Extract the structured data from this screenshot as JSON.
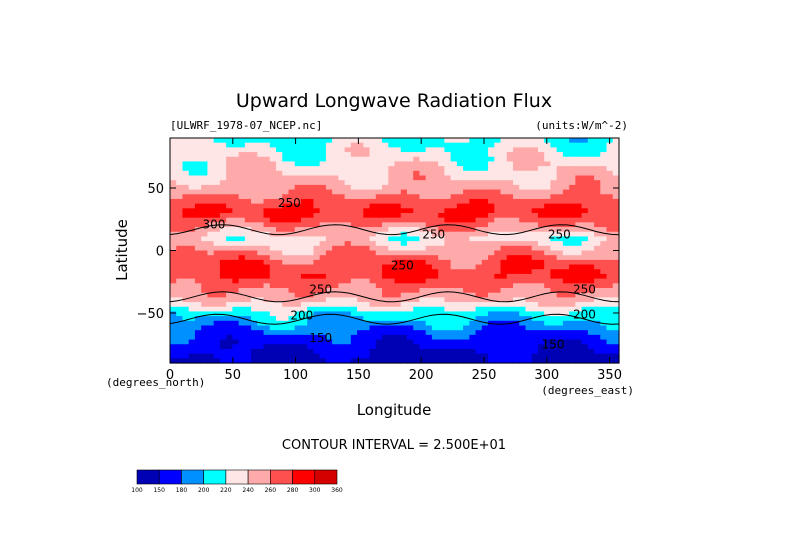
{
  "chart_data": {
    "type": "heatmap",
    "title": "Upward Longwave Radiation Flux",
    "subtitle_left": "[ULWRF_1978-07_NCEP.nc]",
    "subtitle_right": "(units:W/m^-2)",
    "xlabel": "Longitude",
    "ylabel": "Latitude",
    "x_unit_label": "(degrees_east)",
    "y_unit_label": "(degrees_north)",
    "xlim": [
      0,
      357.5
    ],
    "ylim": [
      -90,
      90
    ],
    "x_ticks": [
      0,
      50,
      100,
      150,
      200,
      250,
      300,
      350
    ],
    "y_ticks": [
      -50,
      0,
      50
    ],
    "x_tick_labels": [
      "0",
      "50",
      "100",
      "150",
      "200",
      "250",
      "300",
      "350"
    ],
    "y_tick_labels": [
      "−50",
      "0",
      "50"
    ],
    "contour_interval_text": "CONTOUR INTERVAL = 2.500E+01",
    "contour_labels": [
      {
        "text": "250",
        "x": 95,
        "y": 38
      },
      {
        "text": "300",
        "x": 35,
        "y": 21
      },
      {
        "text": "250",
        "x": 210,
        "y": 13
      },
      {
        "text": "250",
        "x": 310,
        "y": 13
      },
      {
        "text": "250",
        "x": 185,
        "y": -12
      },
      {
        "text": "250",
        "x": 120,
        "y": -31
      },
      {
        "text": "250",
        "x": 330,
        "y": -31
      },
      {
        "text": "200",
        "x": 105,
        "y": -52
      },
      {
        "text": "200",
        "x": 330,
        "y": -51
      },
      {
        "text": "150",
        "x": 120,
        "y": -70
      },
      {
        "text": "150",
        "x": 305,
        "y": -75
      }
    ],
    "colorbar": {
      "levels": [
        "100",
        "150",
        "180",
        "200",
        "220",
        "240",
        "260",
        "280",
        "300",
        "360"
      ],
      "colors": [
        "#0000b4",
        "#0000ff",
        "#0090ff",
        "#00ffff",
        "#ffe6e6",
        "#ffaaaa",
        "#ff5050",
        "#ff0000",
        "#d40000"
      ]
    },
    "zonal_profile": [
      {
        "lat": 90,
        "value": 215
      },
      {
        "lat": 80,
        "value": 225
      },
      {
        "lat": 70,
        "value": 232
      },
      {
        "lat": 60,
        "value": 240
      },
      {
        "lat": 50,
        "value": 250
      },
      {
        "lat": 40,
        "value": 270
      },
      {
        "lat": 30,
        "value": 285
      },
      {
        "lat": 20,
        "value": 260
      },
      {
        "lat": 10,
        "value": 230
      },
      {
        "lat": 0,
        "value": 250
      },
      {
        "lat": -10,
        "value": 275
      },
      {
        "lat": -20,
        "value": 280
      },
      {
        "lat": -30,
        "value": 262
      },
      {
        "lat": -40,
        "value": 245
      },
      {
        "lat": -50,
        "value": 210
      },
      {
        "lat": -60,
        "value": 190
      },
      {
        "lat": -70,
        "value": 168
      },
      {
        "lat": -80,
        "value": 150
      },
      {
        "lat": -90,
        "value": 140
      }
    ]
  }
}
